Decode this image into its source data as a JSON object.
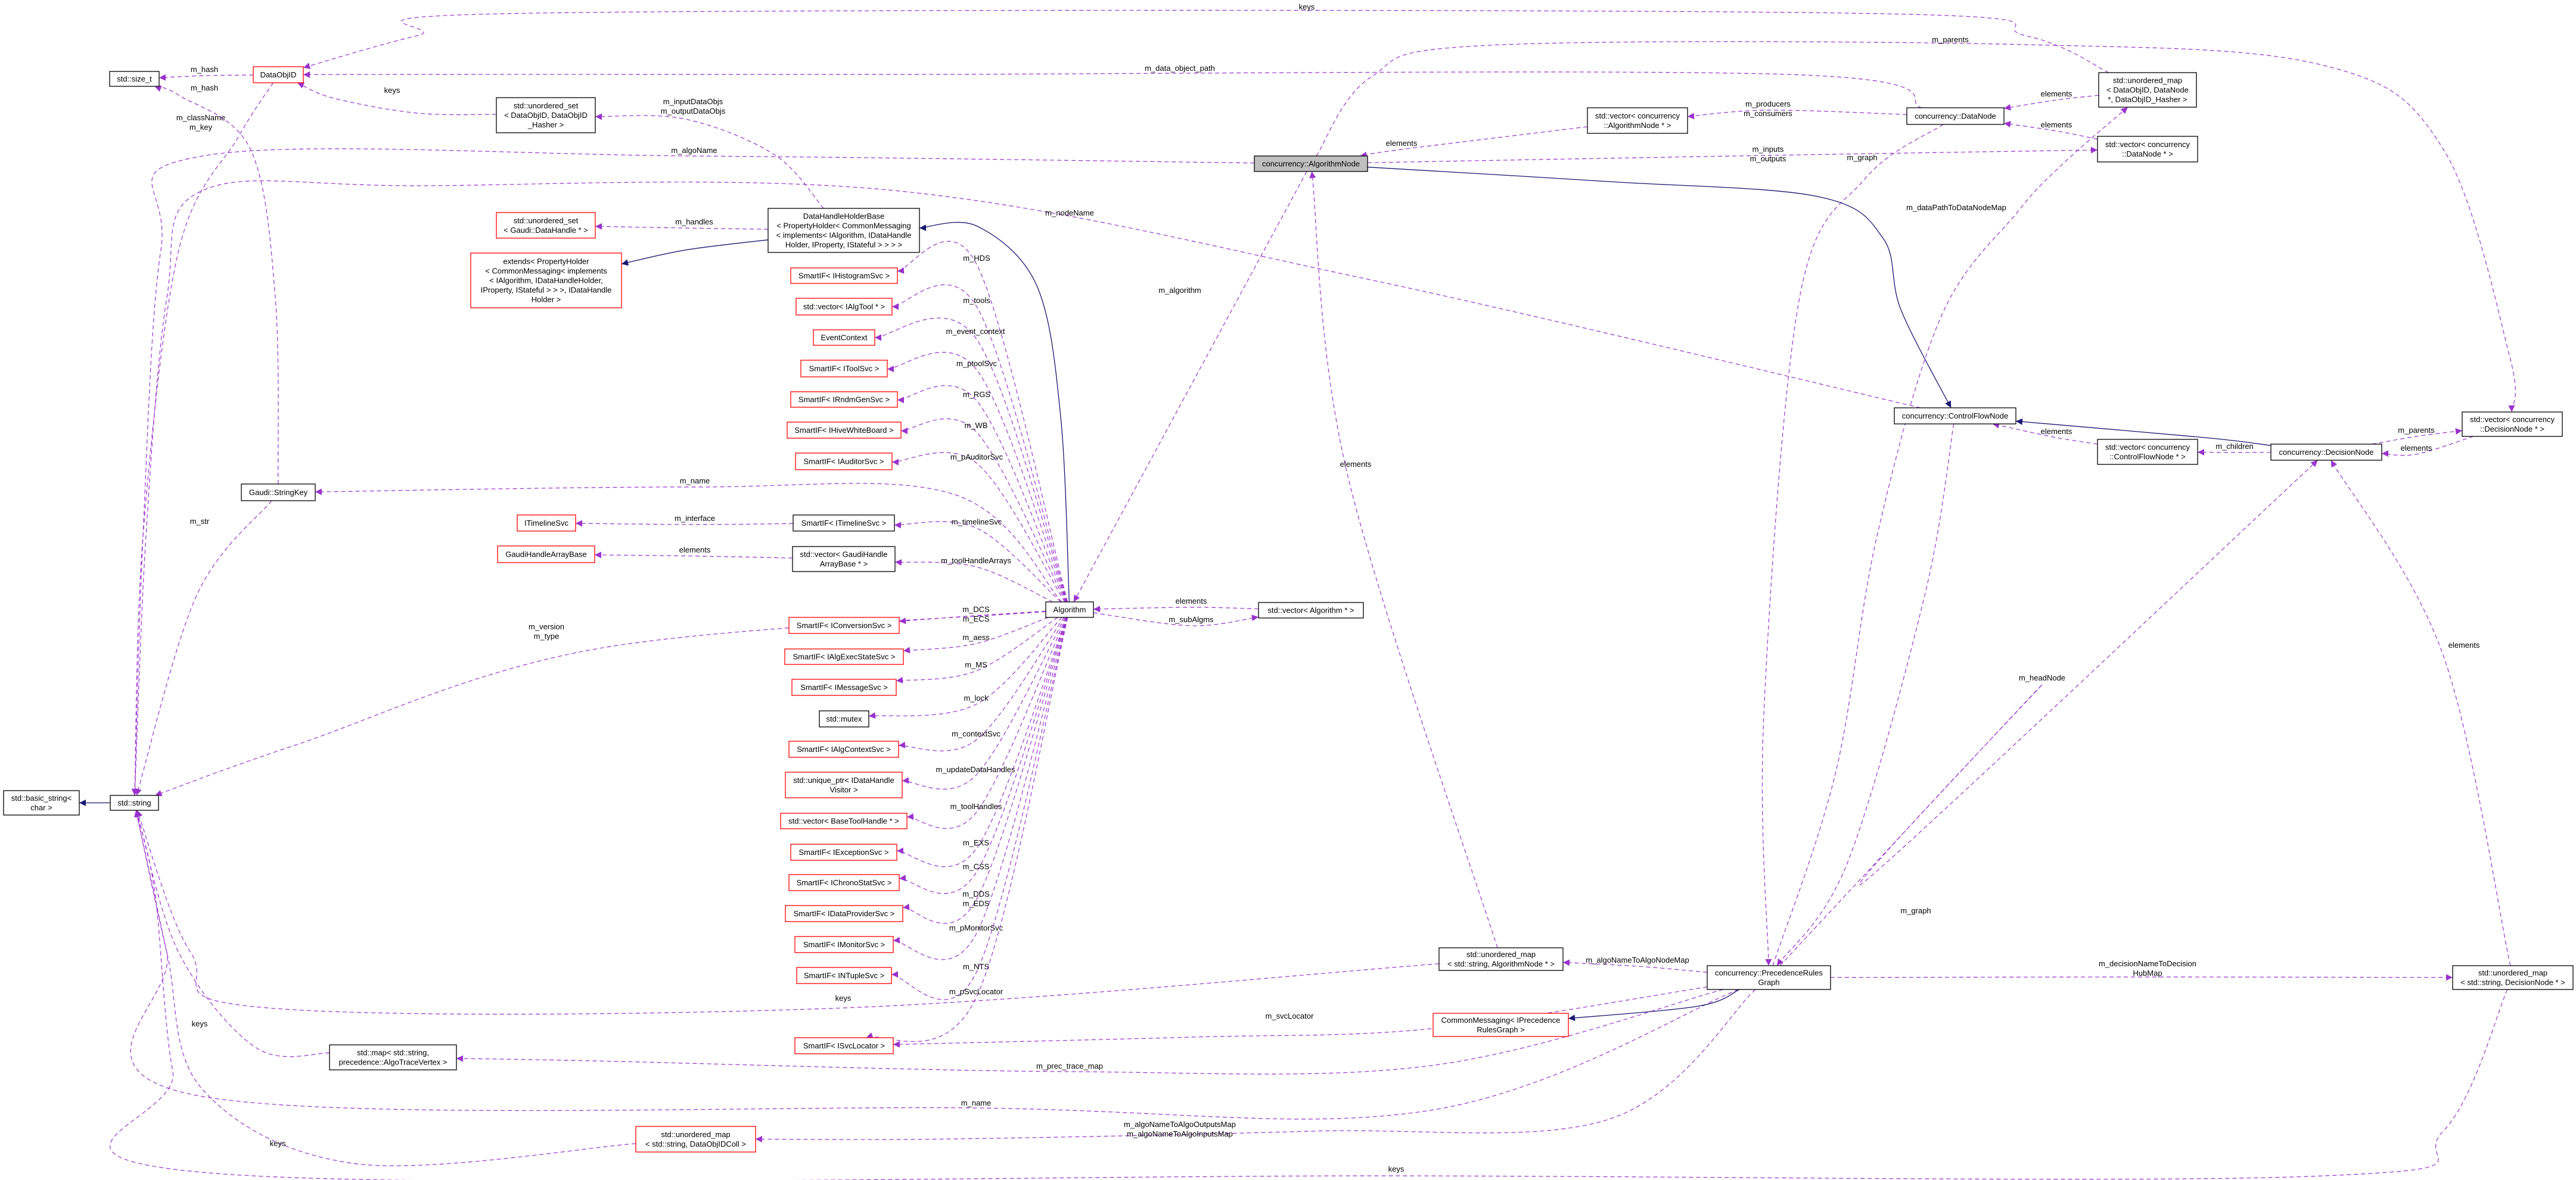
{
  "colors": {
    "usage_edge": "#9a32cd",
    "inheritance_edge": "#191970",
    "undocumented_border": "#ff0000",
    "documented_border": "#000000",
    "focus_fill": "#bfbfbf"
  },
  "nodes": [
    {
      "id": "size_t",
      "lines": [
        "std::size_t"
      ],
      "style": "black"
    },
    {
      "id": "dataobjid",
      "lines": [
        "DataObjID"
      ],
      "style": "red"
    },
    {
      "id": "uset_dataobjid",
      "lines": [
        "std::unordered_set",
        "< DataObjID, DataObjID",
        "_Hasher >"
      ],
      "style": "black"
    },
    {
      "id": "uset_datahandle",
      "lines": [
        "std::unordered_set",
        "< Gaudi::DataHandle * >"
      ],
      "style": "red"
    },
    {
      "id": "extends",
      "lines": [
        "extends< PropertyHolder",
        "< CommonMessaging< implements",
        "< IAlgorithm, IDataHandleHolder,",
        "IProperty, IStateful > > >, IDataHandle",
        "Holder >"
      ],
      "style": "red"
    },
    {
      "id": "dhhb",
      "lines": [
        "DataHandleHolderBase",
        "< PropertyHolder< CommonMessaging",
        "< implements< IAlgorithm, IDataHandle",
        "Holder, IProperty, IStateful > > > >"
      ],
      "style": "black"
    },
    {
      "id": "histo",
      "lines": [
        "SmartIF< IHistogramSvc >"
      ],
      "style": "red"
    },
    {
      "id": "algtool",
      "lines": [
        "std::vector< IAlgTool * >"
      ],
      "style": "red"
    },
    {
      "id": "evctx",
      "lines": [
        "EventContext"
      ],
      "style": "red"
    },
    {
      "id": "toolsvc",
      "lines": [
        "SmartIF< IToolSvc >"
      ],
      "style": "red"
    },
    {
      "id": "rndm",
      "lines": [
        "SmartIF< IRndmGenSvc >"
      ],
      "style": "red"
    },
    {
      "id": "hive",
      "lines": [
        "SmartIF< IHiveWhiteBoard >"
      ],
      "style": "red"
    },
    {
      "id": "auditor",
      "lines": [
        "SmartIF< IAuditorSvc >"
      ],
      "style": "red"
    },
    {
      "id": "stringkey",
      "lines": [
        "Gaudi::StringKey"
      ],
      "style": "black"
    },
    {
      "id": "itimeline",
      "lines": [
        "ITimelineSvc"
      ],
      "style": "red"
    },
    {
      "id": "sp_timeline",
      "lines": [
        "SmartIF< ITimelineSvc >"
      ],
      "style": "black"
    },
    {
      "id": "ghab",
      "lines": [
        "GaudiHandleArrayBase"
      ],
      "style": "red"
    },
    {
      "id": "vec_ghab",
      "lines": [
        "std::vector< GaudiHandle",
        "ArrayBase * >"
      ],
      "style": "black"
    },
    {
      "id": "algorithm",
      "lines": [
        "Algorithm"
      ],
      "style": "black"
    },
    {
      "id": "vec_alg",
      "lines": [
        "std::vector< Algorithm * >"
      ],
      "style": "black"
    },
    {
      "id": "conversion",
      "lines": [
        "SmartIF< IConversionSvc >"
      ],
      "style": "red"
    },
    {
      "id": "aess",
      "lines": [
        "SmartIF< IAlgExecStateSvc >"
      ],
      "style": "red"
    },
    {
      "id": "msg",
      "lines": [
        "SmartIF< IMessageSvc >"
      ],
      "style": "red"
    },
    {
      "id": "mutex",
      "lines": [
        "std::mutex"
      ],
      "style": "black"
    },
    {
      "id": "ctx",
      "lines": [
        "SmartIF< IAlgContextSvc >"
      ],
      "style": "red"
    },
    {
      "id": "uptr",
      "lines": [
        "std::unique_ptr< IDataHandle",
        "Visitor >"
      ],
      "style": "red"
    },
    {
      "id": "basetool",
      "lines": [
        "std::vector< BaseToolHandle * >"
      ],
      "style": "red"
    },
    {
      "id": "exc",
      "lines": [
        "SmartIF< IExceptionSvc >"
      ],
      "style": "red"
    },
    {
      "id": "chrono",
      "lines": [
        "SmartIF< IChronoStatSvc >"
      ],
      "style": "red"
    },
    {
      "id": "dataprov",
      "lines": [
        "SmartIF< IDataProviderSvc >"
      ],
      "style": "red"
    },
    {
      "id": "monitor",
      "lines": [
        "SmartIF< IMonitorSvc >"
      ],
      "style": "red"
    },
    {
      "id": "ntuple",
      "lines": [
        "SmartIF< INTupleSvc >"
      ],
      "style": "red"
    },
    {
      "id": "svcloc",
      "lines": [
        "SmartIF< ISvcLocator >"
      ],
      "style": "red"
    },
    {
      "id": "basic_string",
      "lines": [
        "std::basic_string<",
        "char >"
      ],
      "style": "black"
    },
    {
      "id": "string",
      "lines": [
        "std::string"
      ],
      "style": "black"
    },
    {
      "id": "map_trace",
      "lines": [
        "std::map< std::string,",
        "precedence::AlgoTraceVertex >"
      ],
      "style": "black"
    },
    {
      "id": "umap_dataobjidcoll",
      "lines": [
        "std::unordered_map",
        "< std::string, DataObjIDColl >"
      ],
      "style": "red"
    },
    {
      "id": "algnode",
      "lines": [
        "concurrency::AlgorithmNode"
      ],
      "style": "gray"
    },
    {
      "id": "vec_algnode",
      "lines": [
        "std::vector< concurrency",
        "::AlgorithmNode * >"
      ],
      "style": "black"
    },
    {
      "id": "datanode",
      "lines": [
        "concurrency::DataNode"
      ],
      "style": "black"
    },
    {
      "id": "umap_datanode",
      "lines": [
        "std::unordered_map",
        "< DataObjID, DataNode",
        "*, DataObjID_Hasher >"
      ],
      "style": "black"
    },
    {
      "id": "vec_datanode",
      "lines": [
        "std::vector< concurrency",
        "::DataNode * >"
      ],
      "style": "black"
    },
    {
      "id": "cfn",
      "lines": [
        "concurrency::ControlFlowNode"
      ],
      "style": "black"
    },
    {
      "id": "vec_cfn",
      "lines": [
        "std::vector< concurrency",
        "::ControlFlowNode * >"
      ],
      "style": "black"
    },
    {
      "id": "decision",
      "lines": [
        "concurrency::DecisionNode"
      ],
      "style": "black"
    },
    {
      "id": "vec_decision",
      "lines": [
        "std::vector< concurrency",
        "::DecisionNode * >"
      ],
      "style": "black"
    },
    {
      "id": "umap_algnode",
      "lines": [
        "std::unordered_map",
        "< std::string, AlgorithmNode * >"
      ],
      "style": "black"
    },
    {
      "id": "prg",
      "lines": [
        "concurrency::PrecedenceRules",
        "Graph"
      ],
      "style": "black"
    },
    {
      "id": "cm_prg",
      "lines": [
        "CommonMessaging< IPrecedence",
        "RulesGraph >"
      ],
      "style": "red"
    },
    {
      "id": "umap_decision",
      "lines": [
        "std::unordered_map",
        "< std::string, DecisionNode * >"
      ],
      "style": "black"
    }
  ],
  "edges": [
    {
      "from": "dataobjid",
      "to": "string",
      "kind": "usage",
      "label": [
        "m_className",
        "m_key"
      ]
    },
    {
      "from": "algnode",
      "to": "string",
      "kind": "usage",
      "label": [
        "m_algoName"
      ]
    },
    {
      "from": "cfn",
      "to": "string",
      "kind": "usage",
      "label": [
        "m_nodeName"
      ]
    },
    {
      "from": "stringkey",
      "to": "string",
      "kind": "usage",
      "label": [
        "m_str"
      ]
    },
    {
      "from": "algorithm",
      "to": "string",
      "kind": "usage",
      "label": [
        "m_version",
        "m_type"
      ]
    },
    {
      "from": "map_trace",
      "to": "string",
      "kind": "usage",
      "label": [
        "keys"
      ]
    },
    {
      "from": "umap_algnode",
      "to": "string",
      "kind": "usage",
      "label": [
        "keys"
      ]
    },
    {
      "from": "prg",
      "to": "string",
      "kind": "usage",
      "label": [
        "m_name"
      ]
    },
    {
      "from": "umap_dataobjidcoll",
      "to": "string",
      "kind": "usage",
      "label": [
        "keys"
      ]
    },
    {
      "from": "umap_decision",
      "to": "string",
      "kind": "usage",
      "label": [
        "keys"
      ]
    },
    {
      "from": "string",
      "to": "basic_string",
      "kind": "inherit",
      "label": []
    },
    {
      "from": "dataobjid",
      "to": "size_t",
      "kind": "usage",
      "label": [
        "m_hash"
      ]
    },
    {
      "from": "stringkey",
      "to": "size_t",
      "kind": "usage",
      "label": [
        "m_hash"
      ]
    },
    {
      "from": "uset_dataobjid",
      "to": "dataobjid",
      "kind": "usage",
      "label": [
        "keys"
      ]
    },
    {
      "from": "umap_datanode",
      "to": "dataobjid",
      "kind": "usage",
      "label": [
        "keys"
      ]
    },
    {
      "from": "datanode",
      "to": "dataobjid",
      "kind": "usage",
      "label": [
        "m_data_object_path"
      ]
    },
    {
      "from": "dhhb",
      "to": "uset_dataobjid",
      "kind": "usage",
      "label": [
        "m_inputDataObjs",
        "m_outputDataObjs"
      ]
    },
    {
      "from": "dhhb",
      "to": "uset_datahandle",
      "kind": "usage",
      "label": [
        "m_handles"
      ]
    },
    {
      "from": "dhhb",
      "to": "extends",
      "kind": "inherit",
      "label": []
    },
    {
      "from": "algorithm",
      "to": "dhhb",
      "kind": "inherit",
      "label": []
    },
    {
      "from": "algorithm",
      "to": "histo",
      "kind": "usage",
      "label": [
        "m_HDS"
      ]
    },
    {
      "from": "algorithm",
      "to": "algtool",
      "kind": "usage",
      "label": [
        "m_tools"
      ]
    },
    {
      "from": "algorithm",
      "to": "evctx",
      "kind": "usage",
      "label": [
        "m_event_context"
      ]
    },
    {
      "from": "algorithm",
      "to": "toolsvc",
      "kind": "usage",
      "label": [
        "m_ptoolSvc"
      ]
    },
    {
      "from": "algorithm",
      "to": "rndm",
      "kind": "usage",
      "label": [
        "m_RGS"
      ]
    },
    {
      "from": "algorithm",
      "to": "hive",
      "kind": "usage",
      "label": [
        "m_WB"
      ]
    },
    {
      "from": "algorithm",
      "to": "auditor",
      "kind": "usage",
      "label": [
        "m_pAuditorSvc"
      ]
    },
    {
      "from": "algorithm",
      "to": "stringkey",
      "kind": "usage",
      "label": [
        "m_name"
      ]
    },
    {
      "from": "algorithm",
      "to": "sp_timeline",
      "kind": "usage",
      "label": [
        "m_timelineSvc"
      ]
    },
    {
      "from": "algorithm",
      "to": "vec_ghab",
      "kind": "usage",
      "label": [
        "m_toolHandleArrays"
      ]
    },
    {
      "from": "algorithm",
      "to": "conversion",
      "kind": "usage",
      "label": [
        "m_DCS",
        "m_ECS"
      ]
    },
    {
      "from": "algorithm",
      "to": "aess",
      "kind": "usage",
      "label": [
        "m_aess"
      ]
    },
    {
      "from": "algorithm",
      "to": "msg",
      "kind": "usage",
      "label": [
        "m_MS"
      ]
    },
    {
      "from": "algorithm",
      "to": "mutex",
      "kind": "usage",
      "label": [
        "m_lock"
      ]
    },
    {
      "from": "algorithm",
      "to": "ctx",
      "kind": "usage",
      "label": [
        "m_contextSvc"
      ]
    },
    {
      "from": "algorithm",
      "to": "uptr",
      "kind": "usage",
      "label": [
        "m_updateDataHandles"
      ]
    },
    {
      "from": "algorithm",
      "to": "basetool",
      "kind": "usage",
      "label": [
        "m_toolHandles"
      ]
    },
    {
      "from": "algorithm",
      "to": "exc",
      "kind": "usage",
      "label": [
        "m_EXS"
      ]
    },
    {
      "from": "algorithm",
      "to": "chrono",
      "kind": "usage",
      "label": [
        "m_CSS"
      ]
    },
    {
      "from": "algorithm",
      "to": "dataprov",
      "kind": "usage",
      "label": [
        "m_DDS",
        "m_EDS"
      ]
    },
    {
      "from": "algorithm",
      "to": "monitor",
      "kind": "usage",
      "label": [
        "m_pMonitorSvc"
      ]
    },
    {
      "from": "algorithm",
      "to": "ntuple",
      "kind": "usage",
      "label": [
        "m_NTS"
      ]
    },
    {
      "from": "algorithm",
      "to": "svcloc",
      "kind": "usage",
      "label": [
        "m_pSvcLocator"
      ]
    },
    {
      "from": "sp_timeline",
      "to": "itimeline",
      "kind": "usage",
      "label": [
        "m_interface"
      ]
    },
    {
      "from": "vec_ghab",
      "to": "ghab",
      "kind": "usage",
      "label": [
        "elements"
      ]
    },
    {
      "from": "vec_alg",
      "to": "algorithm",
      "kind": "usage",
      "label": [
        "elements"
      ]
    },
    {
      "from": "algorithm",
      "to": "vec_alg",
      "kind": "usage",
      "label": [
        "m_subAlgms"
      ]
    },
    {
      "from": "algnode",
      "to": "algorithm",
      "kind": "usage",
      "label": [
        "m_algorithm"
      ]
    },
    {
      "from": "vec_algnode",
      "to": "algnode",
      "kind": "usage",
      "label": [
        "elements"
      ]
    },
    {
      "from": "datanode",
      "to": "vec_algnode",
      "kind": "usage",
      "label": [
        "m_producers",
        "m_consumers"
      ]
    },
    {
      "from": "algnode",
      "to": "vec_datanode",
      "kind": "usage",
      "label": [
        "m_inputs",
        "m_outputs"
      ]
    },
    {
      "from": "datanode",
      "to": "prg",
      "kind": "usage",
      "label": [
        "m_graph"
      ]
    },
    {
      "from": "algnode",
      "to": "cfn",
      "kind": "inherit",
      "label": []
    },
    {
      "from": "umap_datanode",
      "to": "datanode",
      "kind": "usage",
      "label": [
        "elements"
      ]
    },
    {
      "from": "vec_datanode",
      "to": "datanode",
      "kind": "usage",
      "label": [
        "elements"
      ]
    },
    {
      "from": "prg",
      "to": "umap_datanode",
      "kind": "usage",
      "label": [
        "m_dataPathToDataNodeMap"
      ]
    },
    {
      "from": "decision",
      "to": "cfn",
      "kind": "inherit",
      "label": []
    },
    {
      "from": "vec_cfn",
      "to": "cfn",
      "kind": "usage",
      "label": [
        "elements"
      ]
    },
    {
      "from": "decision",
      "to": "vec_cfn",
      "kind": "usage",
      "label": [
        "m_children"
      ]
    },
    {
      "from": "decision",
      "to": "vec_decision",
      "kind": "usage",
      "label": [
        "m_parents"
      ]
    },
    {
      "from": "vec_decision",
      "to": "decision",
      "kind": "usage",
      "label": [
        "elements"
      ]
    },
    {
      "from": "algnode",
      "to": "vec_decision",
      "kind": "usage",
      "label": [
        "m_parents"
      ]
    },
    {
      "from": "cfn",
      "to": "prg",
      "kind": "usage",
      "label": [
        "m_graph"
      ]
    },
    {
      "from": "prg",
      "to": "decision",
      "kind": "usage",
      "label": [
        "m_headNode"
      ]
    },
    {
      "from": "umap_decision",
      "to": "decision",
      "kind": "usage",
      "label": [
        "elements"
      ]
    },
    {
      "from": "prg",
      "to": "umap_algnode",
      "kind": "usage",
      "label": [
        "m_algoNameToAlgoNodeMap"
      ]
    },
    {
      "from": "umap_algnode",
      "to": "algnode",
      "kind": "usage",
      "label": [
        "elements"
      ]
    },
    {
      "from": "prg",
      "to": "cm_prg",
      "kind": "inherit",
      "label": []
    },
    {
      "from": "prg",
      "to": "map_trace",
      "kind": "usage",
      "label": [
        "m_prec_trace_map"
      ]
    },
    {
      "from": "prg",
      "to": "svcloc",
      "kind": "usage",
      "label": [
        "m_svcLocator"
      ]
    },
    {
      "from": "prg",
      "to": "umap_dataobjidcoll",
      "kind": "usage",
      "label": [
        "m_algoNameToAlgoOutputsMap",
        "m_algoNameToAlgoInputsMap"
      ]
    },
    {
      "from": "prg",
      "to": "umap_decision",
      "kind": "usage",
      "label": [
        "m_decisionNameToDecision",
        "HubMap"
      ]
    }
  ]
}
